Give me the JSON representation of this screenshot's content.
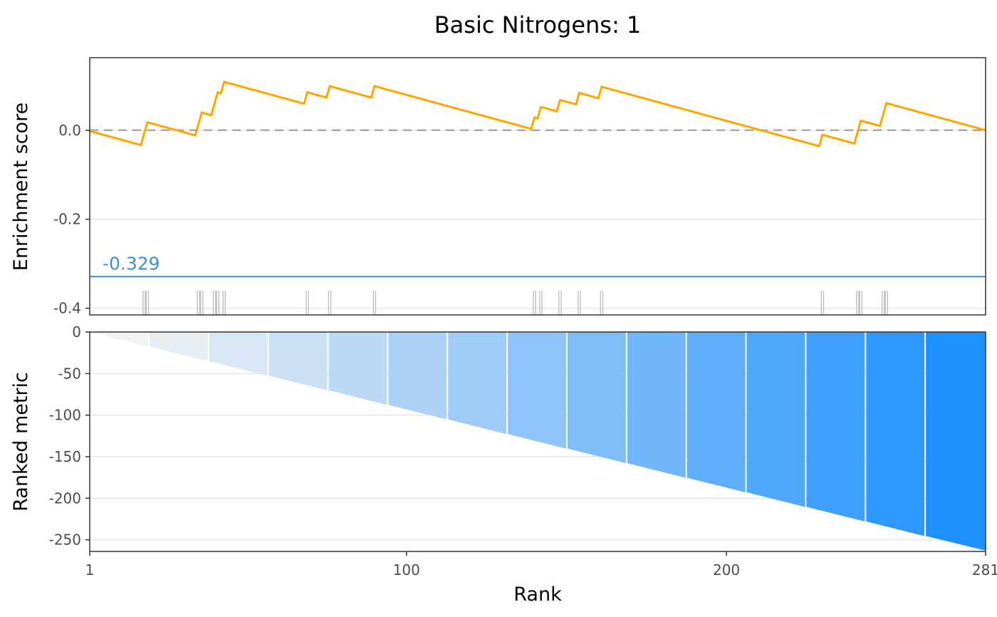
{
  "chart_data": {
    "type": "line",
    "title": "Basic Nitrogens: 1",
    "n": 281,
    "colors": {
      "es_line": "#FFA500",
      "min_es": "#3A93C8",
      "zero_line": "#A9A9A9",
      "hits": "#BFBFBF",
      "grid": "#EBEBEB",
      "frame": "#333333",
      "gradient_low": "#F2F2F2",
      "gradient_high": "#1E90FF"
    },
    "enrichment_panel": {
      "ylabel": "Enrichment score",
      "ylim": [
        -0.415,
        0.163
      ],
      "yticks": [
        {
          "value": 0.0,
          "label": "0.0"
        },
        {
          "value": -0.2,
          "label": "-0.2"
        },
        {
          "value": -0.4,
          "label": "-0.4"
        }
      ],
      "min_es": -0.329,
      "min_es_label": "-0.329",
      "zero_line": 0.0,
      "hit_ranks": [
        18,
        19,
        35,
        36,
        40,
        41,
        43,
        69,
        76,
        90,
        140,
        142,
        148,
        154,
        161,
        230,
        241,
        242,
        249,
        250
      ],
      "step_size": 0.026,
      "miss_slope": 0.00158
    },
    "ranked_panel": {
      "ylabel": "Ranked metric",
      "xlabel": "Rank",
      "ylim": [
        -264,
        0
      ],
      "yticks": [
        {
          "value": 0,
          "label": "0"
        },
        {
          "value": -50,
          "label": "-50"
        },
        {
          "value": -100,
          "label": "-100"
        },
        {
          "value": -150,
          "label": "-150"
        },
        {
          "value": -200,
          "label": "-200"
        },
        {
          "value": -250,
          "label": "-250"
        }
      ],
      "metric_start": 0,
      "metric_end": -263,
      "gradient_segments": 15
    },
    "xaxis": {
      "xlim": [
        1,
        281
      ],
      "ticks": [
        {
          "value": 1,
          "label": "1"
        },
        {
          "value": 100,
          "label": "100"
        },
        {
          "value": 200,
          "label": "200"
        },
        {
          "value": 281,
          "label": "281"
        }
      ]
    }
  }
}
